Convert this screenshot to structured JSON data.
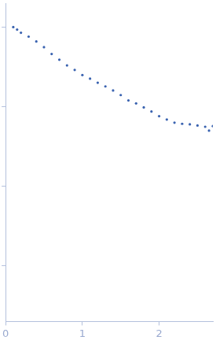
{
  "chart_data": {
    "type": "scatter",
    "log": "y",
    "grid": false,
    "tick_labels": "x",
    "color": "#3a63b0",
    "marker": "circle",
    "x": [
      0.1,
      0.15,
      0.2,
      0.3,
      0.4,
      0.5,
      0.6,
      0.7,
      0.8,
      0.9,
      1.0,
      1.1,
      1.2,
      1.3,
      1.4,
      1.5,
      1.6,
      1.7,
      1.8,
      1.9,
      2.0,
      2.1,
      2.2,
      2.3,
      2.4,
      2.5,
      2.6,
      2.65,
      2.7
    ],
    "values": [
      1.0,
      0.93,
      0.85,
      0.76,
      0.66,
      0.56,
      0.46,
      0.39,
      0.33,
      0.29,
      0.25,
      0.225,
      0.2,
      0.18,
      0.16,
      0.14,
      0.12,
      0.11,
      0.098,
      0.087,
      0.076,
      0.069,
      0.063,
      0.061,
      0.06,
      0.058,
      0.056,
      0.05,
      0.057
    ],
    "xlim": [
      0,
      2.7
    ],
    "xticks": [
      0,
      1,
      2
    ],
    "ylim": [
      0.0002,
      2
    ],
    "yticks": [
      0.001,
      0.01,
      0.1,
      1
    ]
  }
}
